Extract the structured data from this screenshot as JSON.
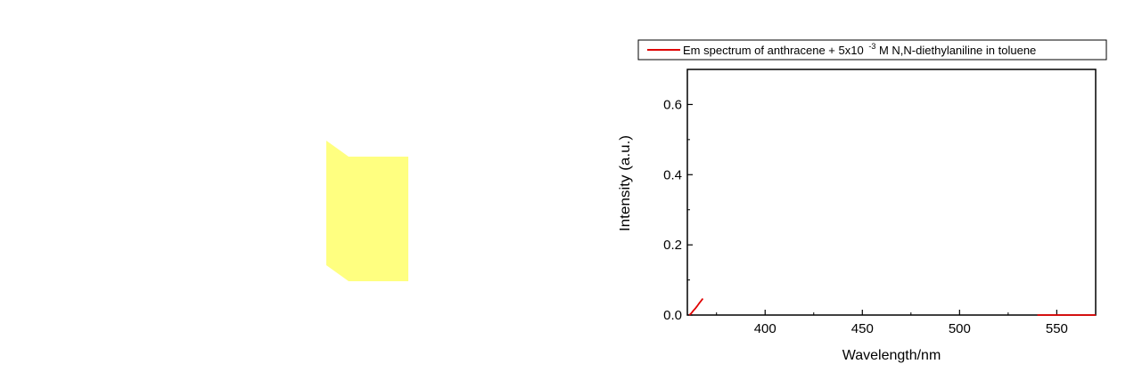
{
  "colors": {
    "cuvette_fill": "#ffff80",
    "series_line": "#e00000",
    "axis": "#000000",
    "background": "#ffffff"
  },
  "chart_data": {
    "type": "line",
    "xlabel": "Wavelength/nm",
    "ylabel": "Intensity (a.u.)",
    "xlim": [
      360,
      570
    ],
    "ylim": [
      0.0,
      0.7
    ],
    "xticks": [
      400,
      450,
      500,
      550
    ],
    "xticks_minor": [
      375,
      425,
      475,
      525
    ],
    "yticks": [
      0.0,
      0.2,
      0.4,
      0.6
    ],
    "yticks_minor": [
      0.1,
      0.3,
      0.5
    ],
    "grid": false,
    "legend_position": "top",
    "legend": {
      "prefix": "Em spectrum of anthracene + 5x10",
      "superscript": "-3",
      "suffix": " M N,N-diethylaniline in toluene"
    },
    "series": [
      {
        "name": "Em spectrum of anthracene + 5x10-3 M N,N-diethylaniline in toluene",
        "color": "#e00000",
        "x": [
          361,
          362,
          363,
          364,
          365,
          366,
          367,
          368,
          380,
          400,
          450,
          500,
          540,
          550,
          560,
          570
        ],
        "y": [
          0.0,
          0.005,
          0.012,
          0.018,
          0.025,
          0.033,
          0.04,
          0.047,
          0.0,
          0.0,
          0.0,
          0.0,
          0.0,
          0.0,
          0.0,
          0.0
        ],
        "segments": [
          [
            0,
            7
          ],
          [
            12,
            15
          ]
        ]
      }
    ]
  }
}
